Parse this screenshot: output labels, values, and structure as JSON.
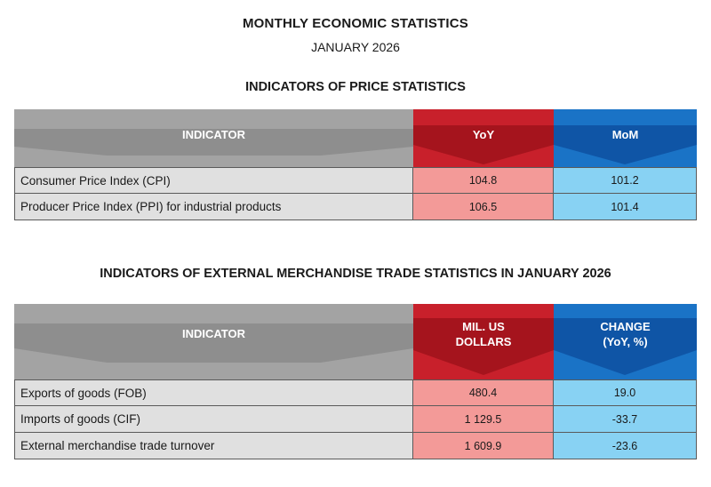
{
  "header": {
    "title": "MONTHLY ECONOMIC STATISTICS",
    "subtitle": "JANUARY 2026"
  },
  "price_section": {
    "title": "INDICATORS OF PRICE STATISTICS",
    "columns": [
      "INDICATOR",
      "YoY",
      "MoM"
    ],
    "rows": [
      {
        "indicator": "Consumer Price Index (CPI)",
        "yoy": "104.8",
        "mom": "101.2"
      },
      {
        "indicator": "Producer Price Index (PPI) for industrial products",
        "yoy": "106.5",
        "mom": "101.4"
      }
    ]
  },
  "trade_section": {
    "title": "INDICATORS OF EXTERNAL MERCHANDISE TRADE STATISTICS IN JANUARY 2026",
    "columns": {
      "indicator": "INDICATOR",
      "value_line1": "MIL. US",
      "value_line2": "DOLLARS",
      "change_line1": "CHANGE",
      "change_line2": "(YoY, %)"
    },
    "rows": [
      {
        "indicator": "Exports of goods (FOB)",
        "value": "480.4",
        "change": "19.0"
      },
      {
        "indicator": "Imports of goods (CIF)",
        "value": "1 129.5",
        "change": "-33.7"
      },
      {
        "indicator": "External merchandise trade turnover",
        "value": "1 609.9",
        "change": "-23.6"
      }
    ]
  },
  "colors": {
    "gray_header": "#a3a3a3",
    "gray_header_dark": "#8e8e8e",
    "red_header": "#c8202b",
    "red_header_dark": "#a5141d",
    "blue_header": "#1a73c6",
    "blue_header_dark": "#0f55a6",
    "gray_cell": "#e0e0e0",
    "red_cell": "#f39a98",
    "blue_cell": "#88d2f3"
  }
}
